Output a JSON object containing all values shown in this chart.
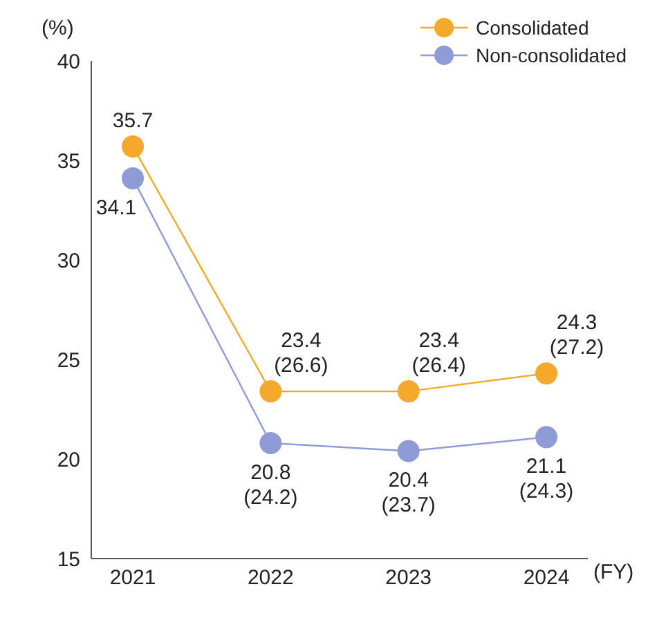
{
  "chart_data": {
    "type": "line",
    "ylabel": "(%)",
    "xlabel": "(FY)",
    "categories": [
      "2021",
      "2022",
      "2023",
      "2024"
    ],
    "series": [
      {
        "name": "Consolidated",
        "color": "#f4a92c",
        "values": [
          35.7,
          23.4,
          23.4,
          24.3
        ],
        "value_labels": [
          "35.7",
          "23.4 (26.6)",
          "23.4 (26.4)",
          "24.3 (27.2)"
        ]
      },
      {
        "name": "Non-consolidated",
        "color": "#8e9bd6",
        "values": [
          34.1,
          20.8,
          20.4,
          21.1
        ],
        "value_labels": [
          "34.1",
          "20.8 (24.2)",
          "20.4 (23.7)",
          "21.1 (24.3)"
        ]
      }
    ],
    "ylim": [
      15,
      40
    ],
    "yticks": [
      15,
      20,
      25,
      30,
      35,
      40
    ],
    "legend": "top right",
    "marker": "circle",
    "line_style": "solid"
  }
}
